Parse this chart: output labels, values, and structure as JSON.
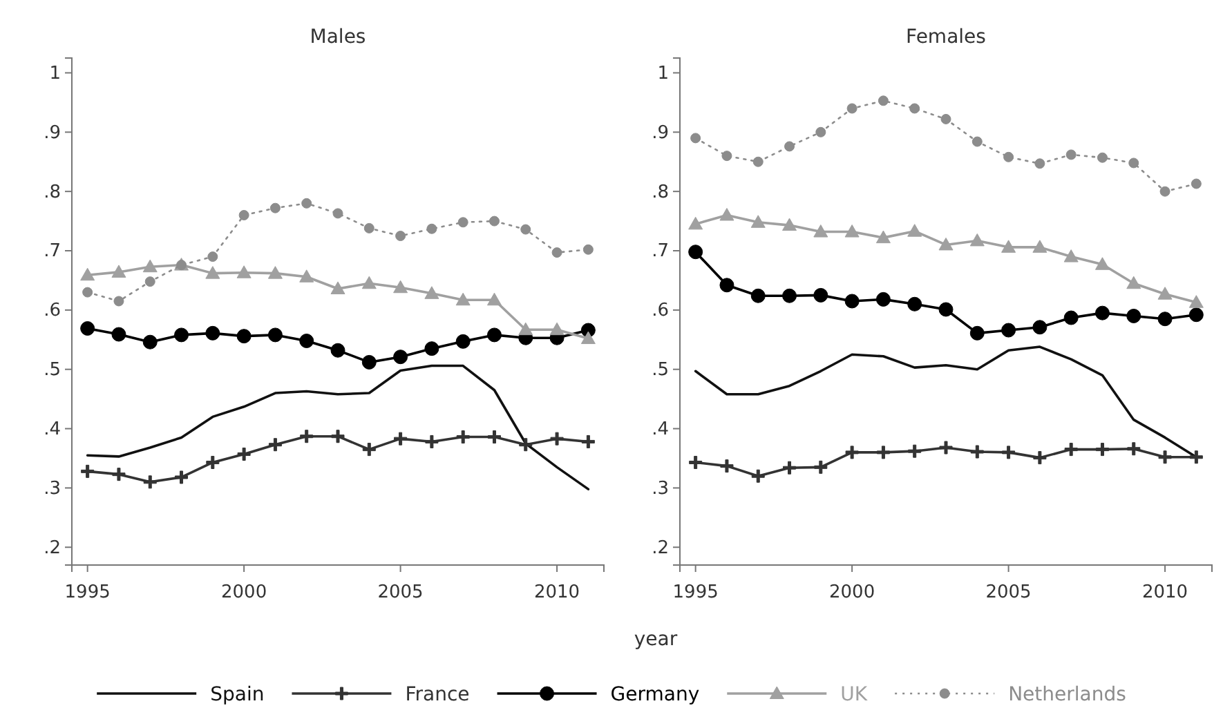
{
  "chart_data": [
    {
      "type": "line",
      "title": "Males",
      "xlabel": "year",
      "legend": "bottom",
      "x": [
        1995,
        1996,
        1997,
        1998,
        1999,
        2000,
        2001,
        2002,
        2003,
        2004,
        2005,
        2006,
        2007,
        2008,
        2009,
        2010,
        2011
      ],
      "xlim": [
        1994.5,
        2011.5
      ],
      "ylim": [
        0.17,
        1.025
      ],
      "xticks": [
        1995,
        2000,
        2005,
        2010
      ],
      "yticks": [
        {
          "value": 0.2,
          "label": ".2"
        },
        {
          "value": 0.3,
          "label": ".3"
        },
        {
          "value": 0.4,
          "label": ".4"
        },
        {
          "value": 0.5,
          "label": ".5"
        },
        {
          "value": 0.6,
          "label": ".6"
        },
        {
          "value": 0.7,
          "label": ".7"
        },
        {
          "value": 0.8,
          "label": ".8"
        },
        {
          "value": 0.9,
          "label": ".9"
        },
        1
      ],
      "series": [
        {
          "name": "Spain",
          "color": "#111111",
          "marker": "none",
          "line_style": "solid",
          "values": [
            0.355,
            0.353,
            0.368,
            0.385,
            0.42,
            0.437,
            0.46,
            0.463,
            0.458,
            0.46,
            0.498,
            0.506,
            0.506,
            0.465,
            0.375,
            0.335,
            0.298
          ]
        },
        {
          "name": "France",
          "color": "#333333",
          "marker": "cross",
          "line_style": "solid",
          "values": [
            0.328,
            0.323,
            0.31,
            0.318,
            0.343,
            0.357,
            0.373,
            0.387,
            0.387,
            0.365,
            0.383,
            0.378,
            0.386,
            0.386,
            0.373,
            0.383,
            0.378
          ]
        },
        {
          "name": "Germany",
          "color": "#000000",
          "marker": "circle",
          "line_style": "solid",
          "values": [
            0.569,
            0.559,
            0.546,
            0.558,
            0.561,
            0.556,
            0.558,
            0.548,
            0.532,
            0.512,
            0.521,
            0.535,
            0.547,
            0.558,
            0.553,
            0.553,
            0.566
          ]
        },
        {
          "name": "UK",
          "color": "#a0a0a0",
          "marker": "triangle",
          "line_style": "solid",
          "values": [
            0.659,
            0.664,
            0.673,
            0.676,
            0.662,
            0.663,
            0.662,
            0.656,
            0.636,
            0.645,
            0.638,
            0.628,
            0.617,
            0.617,
            0.567,
            0.567,
            0.552
          ]
        },
        {
          "name": "Netherlands",
          "color": "#8c8c8c",
          "marker": "circle",
          "line_style": "dotted",
          "values": [
            0.63,
            0.615,
            0.648,
            0.676,
            0.69,
            0.76,
            0.772,
            0.78,
            0.763,
            0.738,
            0.725,
            0.737,
            0.748,
            0.75,
            0.736,
            0.697,
            0.702
          ]
        }
      ]
    },
    {
      "type": "line",
      "title": "Females",
      "x": [
        1995,
        1996,
        1997,
        1998,
        1999,
        2000,
        2001,
        2002,
        2003,
        2004,
        2005,
        2006,
        2007,
        2008,
        2009,
        2010,
        2011
      ],
      "xlim": [
        1994.5,
        2011.5
      ],
      "ylim": [
        0.17,
        1.025
      ],
      "xticks": [
        1995,
        2000,
        2005,
        2010
      ],
      "yticks": [
        {
          "value": 0.2,
          "label": ".2"
        },
        {
          "value": 0.3,
          "label": ".3"
        },
        {
          "value": 0.4,
          "label": ".4"
        },
        {
          "value": 0.5,
          "label": ".5"
        },
        {
          "value": 0.6,
          "label": ".6"
        },
        {
          "value": 0.7,
          "label": ".7"
        },
        {
          "value": 0.8,
          "label": ".8"
        },
        {
          "value": 0.9,
          "label": ".9"
        },
        1
      ],
      "series": [
        {
          "color": "#111111",
          "marker": "none",
          "line_style": "solid",
          "values": [
            0.497,
            0.458,
            0.458,
            0.472,
            0.497,
            0.525,
            0.522,
            0.503,
            0.507,
            0.5,
            0.532,
            0.538,
            0.517,
            0.49,
            0.415,
            0.385,
            0.352
          ]
        },
        {
          "color": "#333333",
          "marker": "cross",
          "line_style": "solid",
          "values": [
            0.343,
            0.337,
            0.32,
            0.334,
            0.335,
            0.36,
            0.36,
            0.362,
            0.368,
            0.361,
            0.36,
            0.351,
            0.365,
            0.365,
            0.366,
            0.352,
            0.352
          ]
        },
        {
          "color": "#000000",
          "marker": "circle",
          "line_style": "solid",
          "values": [
            0.698,
            0.642,
            0.624,
            0.624,
            0.625,
            0.615,
            0.618,
            0.61,
            0.601,
            0.561,
            0.566,
            0.571,
            0.587,
            0.595,
            0.59,
            0.585,
            0.592
          ]
        },
        {
          "color": "#a0a0a0",
          "marker": "triangle",
          "line_style": "solid",
          "values": [
            0.745,
            0.76,
            0.748,
            0.743,
            0.732,
            0.732,
            0.722,
            0.733,
            0.71,
            0.717,
            0.706,
            0.706,
            0.69,
            0.677,
            0.645,
            0.627,
            0.613
          ]
        },
        {
          "color": "#8c8c8c",
          "marker": "circle",
          "line_style": "dotted",
          "values": [
            0.89,
            0.86,
            0.85,
            0.876,
            0.9,
            0.94,
            0.953,
            0.94,
            0.922,
            0.884,
            0.858,
            0.847,
            0.862,
            0.857,
            0.848,
            0.8,
            0.813
          ]
        }
      ]
    }
  ]
}
